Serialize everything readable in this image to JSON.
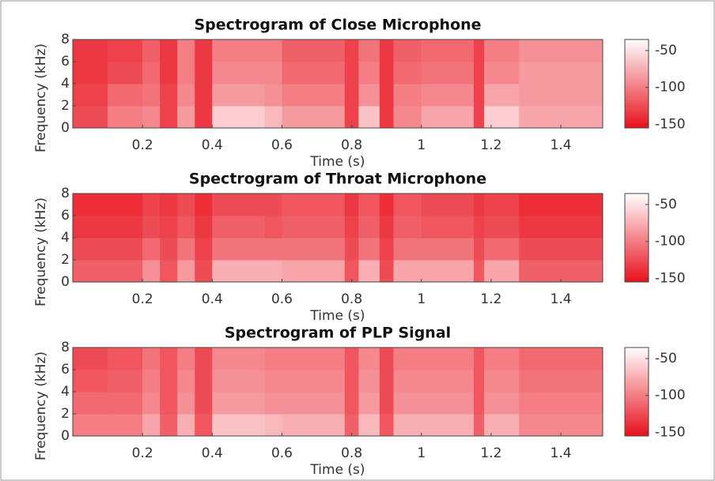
{
  "chart_data": [
    {
      "type": "heatmap",
      "title": "Spectrogram of Close Microphone",
      "xlabel": "Time (s)",
      "ylabel": "Frequency (kHz)",
      "x": [
        0,
        0.1,
        0.2,
        0.25,
        0.3,
        0.35,
        0.4,
        0.55,
        0.6,
        0.78,
        0.82,
        0.88,
        0.92,
        1.0,
        1.15,
        1.18,
        1.28,
        1.52
      ],
      "y": [
        0,
        2,
        4,
        6,
        8
      ],
      "values": [
        [
          -125,
          -100,
          -95,
          -130,
          -85,
          -135,
          -60,
          -70,
          -85,
          -130,
          -65,
          -135,
          -95,
          -80,
          -130,
          -60,
          -80
        ],
        [
          -130,
          -110,
          -105,
          -130,
          -95,
          -135,
          -85,
          -90,
          -100,
          -130,
          -90,
          -135,
          -100,
          -95,
          -130,
          -80,
          -85
        ],
        [
          -135,
          -125,
          -110,
          -135,
          -100,
          -135,
          -95,
          -95,
          -110,
          -130,
          -100,
          -135,
          -110,
          -105,
          -130,
          -95,
          -85
        ],
        [
          -135,
          -130,
          -115,
          -135,
          -100,
          -135,
          -100,
          -100,
          -115,
          -130,
          -105,
          -135,
          -115,
          -110,
          -130,
          -100,
          -90
        ]
      ],
      "xlim": [
        0,
        1.52
      ],
      "xticks": [
        0.2,
        0.4,
        0.6,
        0.8,
        1,
        1.2,
        1.4
      ],
      "ylim": [
        0,
        8
      ],
      "yticks": [
        0,
        2,
        4,
        6,
        8
      ],
      "clim": [
        -155,
        -35
      ],
      "cticks": [
        -50,
        -100,
        -150
      ],
      "colormap": [
        "#e8101c",
        "#ffffff"
      ]
    },
    {
      "type": "heatmap",
      "title": "Spectrogram of Throat Microphone",
      "xlabel": "Time (s)",
      "ylabel": "Frequency (kHz)",
      "x": [
        0,
        0.1,
        0.2,
        0.25,
        0.3,
        0.35,
        0.4,
        0.55,
        0.6,
        0.78,
        0.82,
        0.88,
        0.92,
        1.0,
        1.15,
        1.18,
        1.28,
        1.52
      ],
      "y": [
        0,
        2,
        4,
        6,
        8
      ],
      "values": [
        [
          -115,
          -115,
          -90,
          -120,
          -85,
          -125,
          -75,
          -75,
          -80,
          -120,
          -75,
          -125,
          -80,
          -80,
          -120,
          -80,
          -115
        ],
        [
          -125,
          -125,
          -110,
          -125,
          -105,
          -130,
          -105,
          -105,
          -105,
          -125,
          -105,
          -130,
          -105,
          -105,
          -125,
          -110,
          -125
        ],
        [
          -135,
          -135,
          -125,
          -130,
          -120,
          -135,
          -115,
          -120,
          -115,
          -130,
          -115,
          -135,
          -115,
          -120,
          -130,
          -125,
          -135
        ],
        [
          -140,
          -140,
          -130,
          -135,
          -125,
          -140,
          -125,
          -125,
          -120,
          -135,
          -120,
          -140,
          -120,
          -125,
          -135,
          -130,
          -140
        ]
      ],
      "xlim": [
        0,
        1.52
      ],
      "xticks": [
        0.2,
        0.4,
        0.6,
        0.8,
        1,
        1.2,
        1.4
      ],
      "ylim": [
        0,
        8
      ],
      "yticks": [
        0,
        2,
        4,
        6,
        8
      ],
      "clim": [
        -155,
        -35
      ],
      "cticks": [
        -50,
        -100,
        -150
      ],
      "colormap": [
        "#e8101c",
        "#ffffff"
      ]
    },
    {
      "type": "heatmap",
      "title": "Spectrogram of PLP Signal",
      "xlabel": "Time (s)",
      "ylabel": "Frequency (kHz)",
      "x": [
        0,
        0.1,
        0.2,
        0.25,
        0.3,
        0.35,
        0.4,
        0.55,
        0.6,
        0.78,
        0.82,
        0.88,
        0.92,
        1.0,
        1.15,
        1.18,
        1.28,
        1.52
      ],
      "y": [
        0,
        2,
        4,
        6,
        8
      ],
      "values": [
        [
          -100,
          -100,
          -80,
          -115,
          -75,
          -120,
          -65,
          -70,
          -75,
          -115,
          -70,
          -120,
          -75,
          -75,
          -115,
          -75,
          -95
        ],
        [
          -110,
          -110,
          -95,
          -120,
          -90,
          -125,
          -85,
          -90,
          -90,
          -120,
          -85,
          -125,
          -90,
          -90,
          -120,
          -90,
          -100
        ],
        [
          -120,
          -115,
          -100,
          -120,
          -95,
          -125,
          -90,
          -95,
          -95,
          -120,
          -90,
          -125,
          -95,
          -95,
          -120,
          -95,
          -105
        ],
        [
          -125,
          -120,
          -105,
          -120,
          -100,
          -125,
          -95,
          -100,
          -100,
          -120,
          -95,
          -125,
          -100,
          -100,
          -120,
          -100,
          -110
        ]
      ],
      "xlim": [
        0,
        1.52
      ],
      "xticks": [
        0.2,
        0.4,
        0.6,
        0.8,
        1,
        1.2,
        1.4
      ],
      "ylim": [
        0,
        8
      ],
      "yticks": [
        0,
        2,
        4,
        6,
        8
      ],
      "clim": [
        -155,
        -35
      ],
      "cticks": [
        -50,
        -100,
        -150
      ],
      "colormap": [
        "#e8101c",
        "#ffffff"
      ]
    }
  ]
}
